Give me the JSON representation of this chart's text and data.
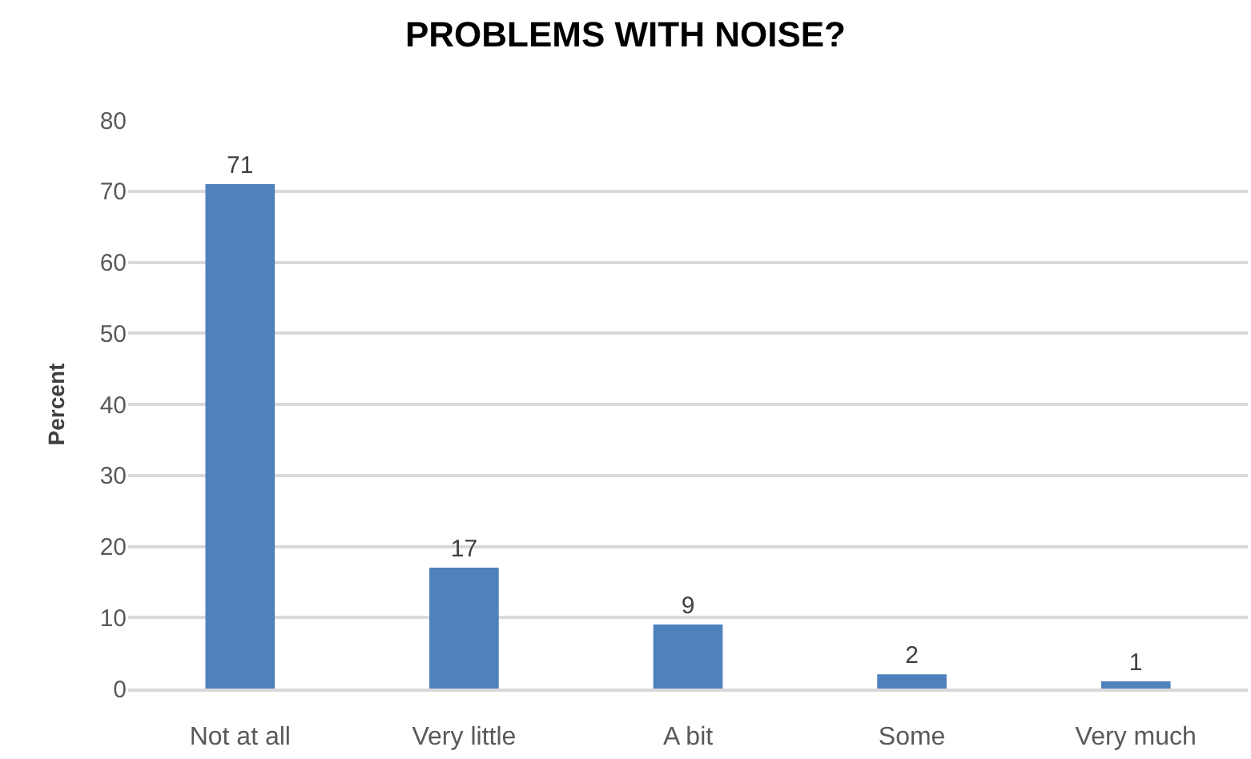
{
  "chart_data": {
    "type": "bar",
    "title": "PROBLEMS WITH NOISE?",
    "ylabel": "Percent",
    "categories": [
      "Not at all",
      "Very little",
      "A bit",
      "Some",
      "Very much"
    ],
    "values": [
      71,
      17,
      9,
      2,
      1
    ],
    "color": "#4f81bd",
    "ylim": [
      0,
      80
    ],
    "yticks": [
      0,
      10,
      20,
      30,
      40,
      50,
      60,
      70,
      80
    ],
    "grid": "y",
    "data_labels": true,
    "legend": false
  }
}
